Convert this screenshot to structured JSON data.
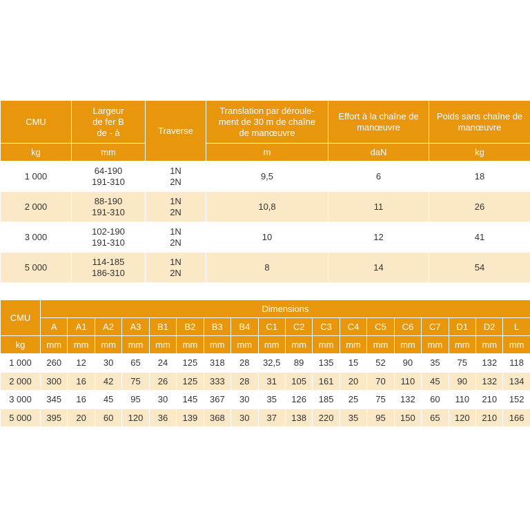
{
  "table1": {
    "headers": [
      "CMU",
      "Largeur\nde fer B\nde - à",
      "Traverse",
      "Translation par déroule-\nment de 30 m de chaîne\nde manœuvre",
      "Effort à la chaîne de\nmanœuvre",
      "Poids sans chaîne de\nmanœuvre"
    ],
    "units": [
      "kg",
      "mm",
      "",
      "m",
      "daN",
      "kg"
    ],
    "rows": [
      [
        "1 000",
        "64-190\n191-310",
        "1N\n2N",
        "9,5",
        "6",
        "18"
      ],
      [
        "2 000",
        "88-190\n191-310",
        "1N\n2N",
        "10,8",
        "11",
        "26"
      ],
      [
        "3 000",
        "102-190\n191-310",
        "1N\n2N",
        "10",
        "12",
        "41"
      ],
      [
        "5 000",
        "114-185\n186-310",
        "1N\n2N",
        "8",
        "14",
        "54"
      ]
    ]
  },
  "table2": {
    "cmu_label": "CMU",
    "group_label": "Dimensions",
    "unit_cmu": "kg",
    "columns": [
      "A",
      "A1",
      "A2",
      "A3",
      "B1",
      "B2",
      "B3",
      "B4",
      "C1",
      "C2",
      "C3",
      "C4",
      "C5",
      "C6",
      "C7",
      "D1",
      "D2",
      "L"
    ],
    "unit": "mm",
    "rows": [
      [
        "1 000",
        "260",
        "12",
        "30",
        "65",
        "24",
        "125",
        "318",
        "28",
        "32,5",
        "89",
        "135",
        "15",
        "52",
        "90",
        "35",
        "75",
        "132",
        "118"
      ],
      [
        "2 000",
        "300",
        "16",
        "42",
        "75",
        "26",
        "125",
        "333",
        "28",
        "31",
        "105",
        "161",
        "20",
        "70",
        "110",
        "45",
        "90",
        "132",
        "134"
      ],
      [
        "3 000",
        "345",
        "16",
        "45",
        "95",
        "30",
        "145",
        "367",
        "30",
        "35",
        "126",
        "185",
        "25",
        "75",
        "132",
        "60",
        "110",
        "210",
        "152"
      ],
      [
        "5 000",
        "395",
        "20",
        "60",
        "120",
        "36",
        "139",
        "368",
        "30",
        "37",
        "138",
        "220",
        "35",
        "95",
        "150",
        "65",
        "120",
        "210",
        "166"
      ]
    ]
  },
  "colors": {
    "header": "#e8960c",
    "stripe": "#fbe8c6",
    "text": "#333333"
  }
}
